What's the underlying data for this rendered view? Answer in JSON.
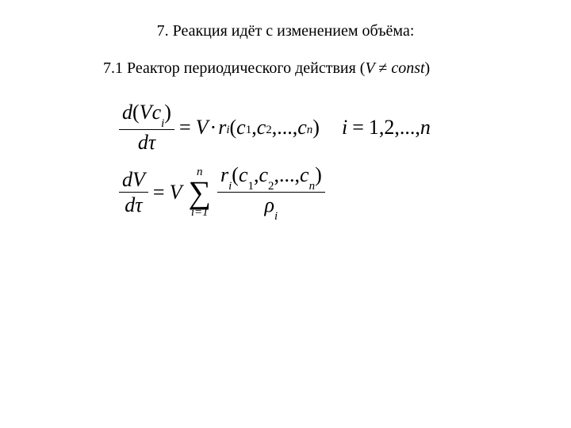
{
  "text_color": "#000000",
  "background_color": "#ffffff",
  "heading": "7. Реакция идёт с изменением объёма:",
  "subheading_prefix": "7.1 Реактор периодического действия (",
  "subheading_var": "V ",
  "subheading_neq": "≠ ",
  "subheading_const": "const",
  "subheading_suffix": ")",
  "eq1": {
    "lhs_num_d": "d",
    "lhs_num_open": "(",
    "lhs_num_V": "V",
    "lhs_num_c": "c",
    "lhs_num_ci": "i",
    "lhs_num_close": ")",
    "lhs_den_d": "d",
    "lhs_den_tau": "τ",
    "eq": "=",
    "rhs_V": "V",
    "rhs_dot": "·",
    "rhs_r": "r",
    "rhs_ri": "i",
    "rhs_open": "(",
    "rhs_c1c": "c",
    "rhs_c1i": "1",
    "rhs_comma1": ",",
    "rhs_c2c": "c",
    "rhs_c2i": "2",
    "rhs_comma2": ",",
    "rhs_dots": "...",
    "rhs_comma3": ",",
    "rhs_cnc": "c",
    "rhs_cni": "n",
    "rhs_close": ")",
    "idx_i": "i",
    "idx_eq": "=",
    "idx_seq": "1,2,...,",
    "idx_n": "n"
  },
  "eq2": {
    "lhs_num_d": "d",
    "lhs_num_V": "V",
    "lhs_den_d": "d",
    "lhs_den_tau": "τ",
    "eq": "=",
    "rhs_V": "V",
    "sum_top": "n",
    "sum_sym": "∑",
    "sum_bot": "i=1",
    "frac_num_r": "r",
    "frac_num_ri": "i",
    "frac_num_open": "(",
    "frac_num_c1c": "c",
    "frac_num_c1i": "1",
    "frac_num_comma1": ",",
    "frac_num_c2c": "c",
    "frac_num_c2i": "2",
    "frac_num_comma2": ",",
    "frac_num_dots": "...",
    "frac_num_comma3": ",",
    "frac_num_cnc": "c",
    "frac_num_cni": "n",
    "frac_num_close": ")",
    "frac_den_rho": "ρ",
    "frac_den_i": "i"
  }
}
